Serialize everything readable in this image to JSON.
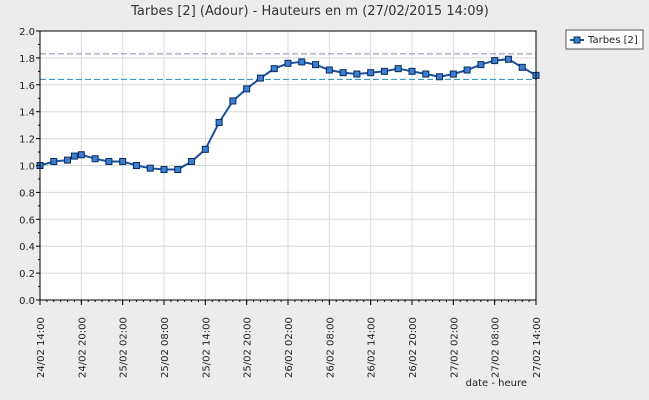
{
  "chart_data": {
    "type": "line",
    "title": "Tarbes [2] (Adour) - Hauteurs en m (27/02/2015 14:09)",
    "xlabel": "date - heure",
    "ylabel": "",
    "ylim": [
      0,
      2.0
    ],
    "y_ticks": [
      "0.0",
      "0.2",
      "0.4",
      "0.6",
      "0.8",
      "1.0",
      "1.2",
      "1.4",
      "1.6",
      "1.8",
      "2.0"
    ],
    "x_range": [
      "24/02 14:00",
      "27/02 14:00"
    ],
    "x_ticks": [
      "24/02 14:00",
      "24/02 20:00",
      "25/02 02:00",
      "25/02 08:00",
      "25/02 14:00",
      "25/02 20:00",
      "26/02 02:00",
      "26/02 08:00",
      "26/02 14:00",
      "26/02 20:00",
      "27/02 02:00",
      "27/02 08:00",
      "27/02 14:00"
    ],
    "grid": true,
    "legend_position": "top-right",
    "reference_lines": [
      {
        "value": 1.83,
        "color": "#8a8aa6",
        "style": "dashed"
      },
      {
        "value": 1.64,
        "color": "#1f8fb8",
        "style": "dashed"
      }
    ],
    "series": [
      {
        "name": "Tarbes [2]",
        "color": "#1a4f9c",
        "x": [
          "24/02 14:00",
          "24/02 16:00",
          "24/02 18:00",
          "24/02 19:00",
          "24/02 20:00",
          "24/02 22:00",
          "25/02 00:00",
          "25/02 02:00",
          "25/02 04:00",
          "25/02 06:00",
          "25/02 08:00",
          "25/02 10:00",
          "25/02 12:00",
          "25/02 14:00",
          "25/02 16:00",
          "25/02 18:00",
          "25/02 20:00",
          "25/02 22:00",
          "26/02 00:00",
          "26/02 02:00",
          "26/02 04:00",
          "26/02 06:00",
          "26/02 08:00",
          "26/02 10:00",
          "26/02 12:00",
          "26/02 14:00",
          "26/02 16:00",
          "26/02 18:00",
          "26/02 20:00",
          "26/02 22:00",
          "27/02 00:00",
          "27/02 02:00",
          "27/02 04:00",
          "27/02 06:00",
          "27/02 08:00",
          "27/02 10:00",
          "27/02 12:00",
          "27/02 14:00"
        ],
        "values": [
          1.0,
          1.03,
          1.04,
          1.07,
          1.08,
          1.05,
          1.03,
          1.03,
          1.0,
          0.98,
          0.97,
          0.97,
          1.03,
          1.12,
          1.32,
          1.48,
          1.57,
          1.65,
          1.72,
          1.76,
          1.77,
          1.75,
          1.71,
          1.69,
          1.68,
          1.69,
          1.7,
          1.72,
          1.7,
          1.68,
          1.66,
          1.68,
          1.71,
          1.75,
          1.78,
          1.79,
          1.73,
          1.67
        ]
      }
    ]
  }
}
